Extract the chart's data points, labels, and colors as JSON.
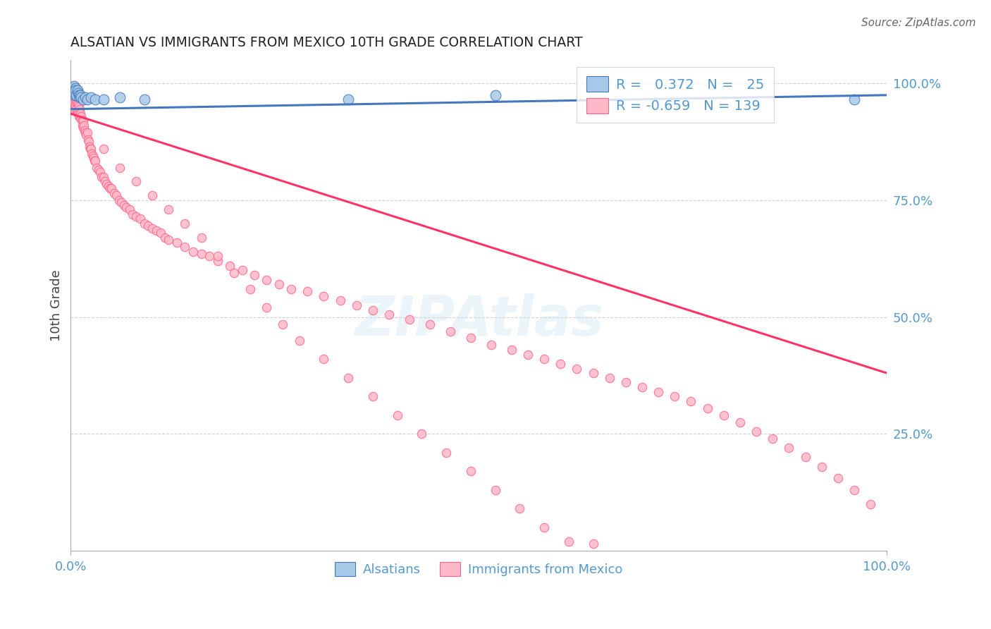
{
  "title": "ALSATIAN VS IMMIGRANTS FROM MEXICO 10TH GRADE CORRELATION CHART",
  "source": "Source: ZipAtlas.com",
  "ylabel": "10th Grade",
  "color_blue_fill": "#A8C8E8",
  "color_blue_edge": "#4477BB",
  "color_pink_fill": "#FFB8C8",
  "color_pink_edge": "#FF6688",
  "color_trendline_blue": "#4477BB",
  "color_trendline_pink": "#FF3366",
  "color_axis": "#AAAAAA",
  "color_grid": "#CCCCCC",
  "color_right_labels": "#5599CC",
  "color_bottom_labels": "#5599CC",
  "color_watermark": "#BBDDEE",
  "watermark_alpha": 0.3,
  "xlim": [
    0.0,
    1.0
  ],
  "ylim": [
    0.0,
    1.05
  ],
  "yticks": [
    0.25,
    0.5,
    0.75,
    1.0
  ],
  "ytick_labels": [
    "25.0%",
    "50.0%",
    "75.0%",
    "100.0%"
  ],
  "xticks": [
    0.0,
    1.0
  ],
  "xtick_labels": [
    "0.0%",
    "100.0%"
  ],
  "blue_trend_x": [
    0.0,
    1.0
  ],
  "blue_trend_y": [
    0.945,
    0.975
  ],
  "pink_trend_x": [
    0.0,
    1.0
  ],
  "pink_trend_y": [
    0.935,
    0.38
  ],
  "als_x": [
    0.002,
    0.003,
    0.004,
    0.005,
    0.005,
    0.006,
    0.006,
    0.007,
    0.008,
    0.009,
    0.01,
    0.011,
    0.012,
    0.013,
    0.015,
    0.018,
    0.02,
    0.025,
    0.03,
    0.04,
    0.06,
    0.09,
    0.34,
    0.52,
    0.96
  ],
  "als_y": [
    0.985,
    0.99,
    0.995,
    0.975,
    0.98,
    0.99,
    0.985,
    0.975,
    0.985,
    0.98,
    0.975,
    0.97,
    0.975,
    0.97,
    0.965,
    0.97,
    0.965,
    0.97,
    0.965,
    0.965,
    0.97,
    0.965,
    0.965,
    0.975,
    0.965
  ],
  "mex_x": [
    0.002,
    0.003,
    0.003,
    0.004,
    0.004,
    0.005,
    0.005,
    0.005,
    0.006,
    0.006,
    0.007,
    0.007,
    0.008,
    0.008,
    0.009,
    0.009,
    0.01,
    0.01,
    0.011,
    0.012,
    0.012,
    0.013,
    0.014,
    0.014,
    0.015,
    0.015,
    0.016,
    0.017,
    0.018,
    0.019,
    0.02,
    0.021,
    0.022,
    0.023,
    0.024,
    0.025,
    0.026,
    0.027,
    0.028,
    0.029,
    0.03,
    0.032,
    0.034,
    0.036,
    0.038,
    0.04,
    0.042,
    0.044,
    0.046,
    0.048,
    0.05,
    0.053,
    0.056,
    0.059,
    0.062,
    0.065,
    0.068,
    0.072,
    0.076,
    0.08,
    0.085,
    0.09,
    0.095,
    0.1,
    0.105,
    0.11,
    0.115,
    0.12,
    0.13,
    0.14,
    0.15,
    0.16,
    0.17,
    0.18,
    0.195,
    0.21,
    0.225,
    0.24,
    0.255,
    0.27,
    0.29,
    0.31,
    0.33,
    0.35,
    0.37,
    0.39,
    0.415,
    0.44,
    0.465,
    0.49,
    0.515,
    0.54,
    0.56,
    0.58,
    0.6,
    0.62,
    0.64,
    0.66,
    0.68,
    0.7,
    0.72,
    0.74,
    0.76,
    0.78,
    0.8,
    0.82,
    0.84,
    0.86,
    0.88,
    0.9,
    0.92,
    0.94,
    0.96,
    0.98,
    0.04,
    0.06,
    0.08,
    0.1,
    0.12,
    0.14,
    0.16,
    0.18,
    0.2,
    0.22,
    0.24,
    0.26,
    0.28,
    0.31,
    0.34,
    0.37,
    0.4,
    0.43,
    0.46,
    0.49,
    0.52,
    0.55,
    0.58,
    0.61,
    0.64
  ],
  "mex_y": [
    0.975,
    0.98,
    0.965,
    0.97,
    0.96,
    0.975,
    0.955,
    0.945,
    0.965,
    0.95,
    0.96,
    0.945,
    0.96,
    0.94,
    0.955,
    0.935,
    0.95,
    0.93,
    0.945,
    0.935,
    0.925,
    0.93,
    0.92,
    0.91,
    0.92,
    0.905,
    0.91,
    0.9,
    0.895,
    0.89,
    0.895,
    0.88,
    0.875,
    0.865,
    0.86,
    0.86,
    0.85,
    0.845,
    0.84,
    0.835,
    0.835,
    0.82,
    0.815,
    0.81,
    0.8,
    0.8,
    0.79,
    0.785,
    0.78,
    0.775,
    0.775,
    0.765,
    0.76,
    0.75,
    0.745,
    0.74,
    0.735,
    0.73,
    0.72,
    0.715,
    0.71,
    0.7,
    0.695,
    0.69,
    0.685,
    0.68,
    0.67,
    0.665,
    0.66,
    0.65,
    0.64,
    0.635,
    0.63,
    0.62,
    0.61,
    0.6,
    0.59,
    0.58,
    0.57,
    0.56,
    0.555,
    0.545,
    0.535,
    0.525,
    0.515,
    0.505,
    0.495,
    0.485,
    0.47,
    0.455,
    0.44,
    0.43,
    0.42,
    0.41,
    0.4,
    0.39,
    0.38,
    0.37,
    0.36,
    0.35,
    0.34,
    0.33,
    0.32,
    0.305,
    0.29,
    0.275,
    0.255,
    0.24,
    0.22,
    0.2,
    0.18,
    0.155,
    0.13,
    0.1,
    0.86,
    0.82,
    0.79,
    0.76,
    0.73,
    0.7,
    0.67,
    0.63,
    0.595,
    0.56,
    0.52,
    0.485,
    0.45,
    0.41,
    0.37,
    0.33,
    0.29,
    0.25,
    0.21,
    0.17,
    0.13,
    0.09,
    0.05,
    0.02,
    0.015
  ],
  "legend_r1": " 0.372",
  "legend_n1": " 25",
  "legend_r2": "-0.659",
  "legend_n2": "139",
  "marker_size": 80,
  "marker_lw": 0.8
}
